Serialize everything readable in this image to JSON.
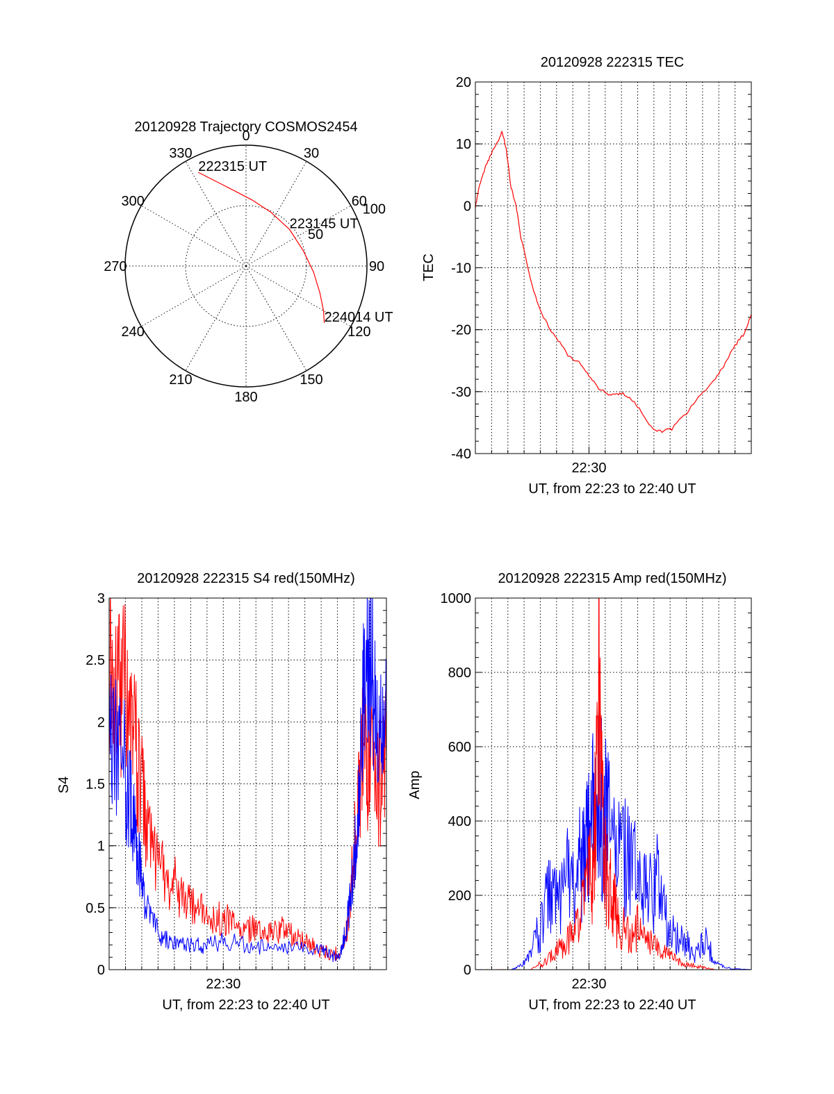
{
  "chart_data": [
    {
      "id": "trajectory",
      "type": "polar",
      "title": "20120928 Trajectory COSMOS2454",
      "theta_labels": [
        "0",
        "30",
        "60",
        "90",
        "120",
        "150",
        "180",
        "210",
        "240",
        "270",
        "300",
        "330"
      ],
      "radial_labels": [
        {
          "text": "50",
          "r": 50
        },
        {
          "text": "100",
          "r": 100
        }
      ],
      "rmax": 100,
      "series": [
        {
          "color": "#ff0000",
          "points": [
            {
              "az": 333,
              "r": 87
            },
            {
              "az": 340,
              "r": 75
            },
            {
              "az": 350,
              "r": 64
            },
            {
              "az": 5,
              "r": 55
            },
            {
              "az": 25,
              "r": 49
            },
            {
              "az": 50,
              "r": 47
            },
            {
              "az": 75,
              "r": 49
            },
            {
              "az": 95,
              "r": 56
            },
            {
              "az": 110,
              "r": 65
            },
            {
              "az": 120,
              "r": 74
            },
            {
              "az": 126,
              "r": 80
            }
          ]
        }
      ],
      "annotations": [
        {
          "text": "222315 UT",
          "az": 333,
          "r": 87
        },
        {
          "text": "223145 UT",
          "az": 50,
          "r": 47
        },
        {
          "text": "224014 UT",
          "az": 126,
          "r": 80
        }
      ]
    },
    {
      "id": "tec",
      "type": "line",
      "title": "20120928 222315 TEC",
      "xlabel": "UT, from 22:23 to 22:40 UT",
      "ylabel": "TEC",
      "xlim": [
        22.3833,
        22.6667
      ],
      "ylim": [
        -40,
        20
      ],
      "yticks": [
        "20",
        "10",
        "0",
        "-10",
        "-20",
        "-30",
        "-40"
      ],
      "xtick": {
        "label": "22:30",
        "value": 22.5
      },
      "series": [
        {
          "color": "#ff0000",
          "x": [
            22.3833,
            22.387,
            22.392,
            22.397,
            22.403,
            22.408,
            22.411,
            22.415,
            22.42,
            22.425,
            22.43,
            22.44,
            22.45,
            22.46,
            22.47,
            22.48,
            22.49,
            22.5,
            22.51,
            22.52,
            22.528,
            22.535,
            22.545,
            22.555,
            22.565,
            22.575,
            22.585,
            22.6,
            22.615,
            22.63,
            22.64,
            22.65,
            22.66,
            22.6667
          ],
          "y": [
            -0.2,
            3,
            5.5,
            7.5,
            9.5,
            11,
            12,
            9,
            3,
            0,
            -5,
            -12,
            -17,
            -20,
            -22,
            -24.5,
            -25.2,
            -27.5,
            -29.5,
            -30.5,
            -30.5,
            -30.3,
            -31.5,
            -33.5,
            -36,
            -36.5,
            -36,
            -33.5,
            -30.5,
            -28,
            -25.5,
            -22.5,
            -20.5,
            -17.5
          ]
        }
      ]
    },
    {
      "id": "s4",
      "type": "line",
      "title": "20120928 222315 S4 red(150MHz)",
      "xlabel": "UT, from 22:23 to 22:40 UT",
      "ylabel": "S4",
      "xlim": [
        22.3833,
        22.6667
      ],
      "ylim": [
        0,
        3
      ],
      "yticks": [
        "3",
        "2.5",
        "2",
        "1.5",
        "1",
        "0.5",
        "0"
      ],
      "xtick": {
        "label": "22:30",
        "value": 22.5
      },
      "series": [
        {
          "color": "#ff0000",
          "x": [
            22.3833,
            22.392,
            22.4,
            22.407,
            22.413,
            22.42,
            22.43,
            22.44,
            22.45,
            22.46,
            22.47,
            22.48,
            22.49,
            22.5,
            22.51,
            22.52,
            22.53,
            22.54,
            22.55,
            22.56,
            22.57,
            22.58,
            22.59,
            22.6,
            22.61,
            22.62,
            22.625,
            22.63,
            22.635,
            22.64,
            22.645,
            22.65,
            22.66,
            22.6667
          ],
          "y": [
            2.6,
            2.4,
            2.2,
            1.9,
            1.7,
            1.2,
            0.9,
            0.75,
            0.7,
            0.55,
            0.5,
            0.45,
            0.4,
            0.42,
            0.36,
            0.3,
            0.33,
            0.28,
            0.3,
            0.32,
            0.28,
            0.25,
            0.2,
            0.15,
            0.12,
            0.15,
            0.25,
            0.6,
            1.1,
            1.6,
            1.8,
            1.6,
            1.5,
            1.7
          ]
        },
        {
          "color": "#0000ff",
          "x": [
            22.3833,
            22.392,
            22.4,
            22.405,
            22.41,
            22.415,
            22.42,
            22.43,
            22.44,
            22.45,
            22.46,
            22.47,
            22.48,
            22.5,
            22.52,
            22.54,
            22.56,
            22.58,
            22.6,
            22.61,
            22.62,
            22.625,
            22.63,
            22.635,
            22.64,
            22.645,
            22.65,
            22.655,
            22.66,
            22.6667
          ],
          "y": [
            1.8,
            1.75,
            1.6,
            1.3,
            1.1,
            0.8,
            0.5,
            0.35,
            0.25,
            0.2,
            0.2,
            0.22,
            0.18,
            0.24,
            0.2,
            0.18,
            0.16,
            0.18,
            0.15,
            0.1,
            0.15,
            0.3,
            0.6,
            1.0,
            1.7,
            2.3,
            2.6,
            2.2,
            1.8,
            2.0
          ]
        }
      ]
    },
    {
      "id": "amp",
      "type": "line",
      "title": "20120928 222315 Amp red(150MHz)",
      "xlabel": "UT, from 22:23 to 22:40 UT",
      "ylabel": "Amp",
      "xlim": [
        22.3833,
        22.6667
      ],
      "ylim": [
        0,
        1000
      ],
      "yticks": [
        "1000",
        "800",
        "600",
        "400",
        "200",
        "0"
      ],
      "xtick": {
        "label": "22:30",
        "value": 22.5
      },
      "series": [
        {
          "color": "#0000ff",
          "x": [
            22.3833,
            22.42,
            22.43,
            22.44,
            22.45,
            22.46,
            22.47,
            22.48,
            22.49,
            22.495,
            22.5,
            22.505,
            22.51,
            22.515,
            22.52,
            22.53,
            22.54,
            22.55,
            22.56,
            22.57,
            22.58,
            22.59,
            22.6,
            22.61,
            22.62,
            22.63,
            22.64,
            22.6667
          ],
          "y": [
            0,
            0,
            10,
            40,
            120,
            200,
            180,
            260,
            280,
            300,
            350,
            420,
            470,
            400,
            380,
            320,
            280,
            240,
            200,
            230,
            120,
            90,
            70,
            40,
            80,
            20,
            5,
            0
          ]
        },
        {
          "color": "#ff0000",
          "x": [
            22.3833,
            22.44,
            22.45,
            22.46,
            22.47,
            22.48,
            22.49,
            22.5,
            22.505,
            22.51,
            22.515,
            22.52,
            22.525,
            22.53,
            22.54,
            22.55,
            22.56,
            22.57,
            22.58,
            22.59,
            22.6,
            22.61,
            22.62,
            22.63,
            22.6667
          ],
          "y": [
            0,
            0,
            15,
            30,
            60,
            80,
            120,
            250,
            300,
            690,
            320,
            250,
            180,
            130,
            90,
            110,
            70,
            60,
            40,
            25,
            15,
            10,
            5,
            0,
            0
          ]
        }
      ]
    }
  ]
}
